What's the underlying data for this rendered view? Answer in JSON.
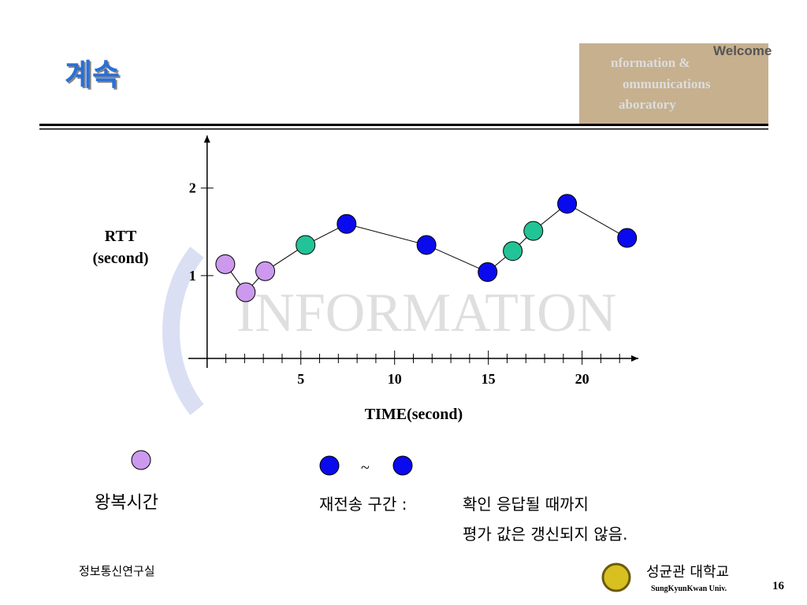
{
  "slide": {
    "title": "계속",
    "logo": {
      "welcome": "Welcome",
      "lines": [
        "nformation &",
        "ommunications",
        "aboratory"
      ]
    },
    "legend": {
      "rtt_label": "왕복시간",
      "tilde": "~",
      "retrans_label": "재전송 구간 :",
      "retrans_note": [
        "확인 응답될 때까지",
        "평가 값은 갱신되지 않음."
      ]
    },
    "footer": {
      "lab": "정보통신연구실",
      "univ_ko": "성균관 대학교",
      "univ_en": "SungKyunKwan Univ.",
      "page": "16"
    }
  },
  "chart_data": {
    "type": "line",
    "ylabel": [
      "RTT",
      "(second)"
    ],
    "xlabel": "TIME(second)",
    "xlim": [
      -1,
      23
    ],
    "ylim": [
      0,
      2.6
    ],
    "xticks": [
      5,
      10,
      15,
      20
    ],
    "yticks": [
      1,
      2
    ],
    "xticks_minor": [
      1,
      2,
      3,
      4,
      6,
      7,
      8,
      9,
      11,
      12,
      13,
      14,
      16,
      17,
      18,
      19,
      21,
      22
    ],
    "series": [
      {
        "x": [
          0.97,
          2.06,
          3.1,
          5.25,
          7.44,
          11.7,
          14.96,
          16.3,
          17.4,
          19.2,
          22.4
        ],
        "values": [
          1.13,
          0.81,
          1.05,
          1.35,
          1.59,
          1.35,
          1.04,
          1.28,
          1.51,
          1.82,
          1.43
        ],
        "point_colors": [
          "#cc99ee",
          "#cc99ee",
          "#cc99ee",
          "#22c396",
          "#0a0aee",
          "#0a0aee",
          "#0a0aee",
          "#22c396",
          "#22c396",
          "#0a0aee",
          "#0a0aee"
        ],
        "color": "#000000"
      }
    ]
  }
}
